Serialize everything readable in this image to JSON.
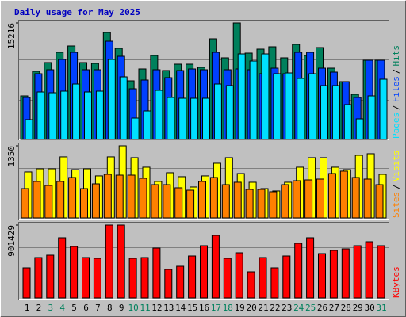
{
  "title": "Daily usage for May 2025",
  "chart_data": [
    {
      "type": "bar",
      "ylim": [
        0,
        15216
      ],
      "yticks": [
        15216
      ],
      "legend_separator": "/",
      "series": [
        {
          "name": "Hits",
          "color": "#00805c",
          "values": [
            5693,
            8902,
            10041,
            11386,
            12214,
            10041,
            9937,
            13974,
            11904,
            7660,
            9213,
            10972,
            9006,
            9834,
            9834,
            9420,
            13146,
            10662,
            15216,
            11283,
            11800,
            12111,
            10662,
            12421,
            10972,
            12007,
            9316,
            7556,
            5900,
            10351,
            10351
          ]
        },
        {
          "name": "Files",
          "color": "#0040ff",
          "values": [
            5486,
            8591,
            9108,
            10454,
            11385,
            9108,
            9108,
            12834,
            10868,
            6624,
            7763,
            9108,
            8073,
            9005,
            9212,
            9108,
            11385,
            9108,
            9212,
            9108,
            8591,
            9315,
            8591,
            11385,
            11385,
            9315,
            8798,
            7556,
            5486,
            10350,
            10350
          ]
        },
        {
          "name": "Pages",
          "color": "#00e0ff",
          "values": [
            2588,
            6210,
            6107,
            6314,
            7245,
            6210,
            6314,
            10454,
            8177,
            2795,
            3726,
            6417,
            5486,
            5382,
            5382,
            5382,
            7245,
            7038,
            11178,
            10247,
            11178,
            8591,
            8694,
            7970,
            8591,
            7038,
            7038,
            4554,
            2691,
            5693,
            7866
          ]
        }
      ]
    },
    {
      "type": "bar",
      "ylim": [
        0,
        1350
      ],
      "yticks": [
        1350
      ],
      "legend_separator": "/",
      "series": [
        {
          "name": "Visits",
          "color": "#ffff00",
          "values": [
            861,
            920,
            920,
            1143,
            905,
            920,
            787,
            1143,
            1350,
            1128,
            950,
            683,
            846,
            772,
            579,
            787,
            1024,
            1128,
            831,
            668,
            549,
            505,
            668,
            950,
            1128,
            1128,
            950,
            905,
            1172,
            1202,
            816
          ]
        },
        {
          "name": "Sites",
          "color": "#ff8000",
          "values": [
            549,
            683,
            608,
            683,
            757,
            549,
            638,
            816,
            801,
            801,
            742,
            623,
            623,
            564,
            519,
            683,
            757,
            623,
            668,
            534,
            534,
            490,
            623,
            697,
            712,
            727,
            831,
            876,
            757,
            727,
            623
          ]
        }
      ]
    },
    {
      "type": "bar",
      "ylim": [
        0,
        901429
      ],
      "yticks": [
        901429
      ],
      "categories": [
        "1",
        "2",
        "3",
        "4",
        "5",
        "6",
        "7",
        "8",
        "9",
        "10",
        "11",
        "12",
        "13",
        "14",
        "15",
        "16",
        "17",
        "18",
        "19",
        "20",
        "21",
        "22",
        "23",
        "24",
        "25",
        "26",
        "27",
        "28",
        "29",
        "30",
        "31"
      ],
      "category_colors": [
        "#000000",
        "#000000",
        "#00805c",
        "#00805c",
        "#000000",
        "#000000",
        "#000000",
        "#000000",
        "#000000",
        "#00805c",
        "#00805c",
        "#000000",
        "#000000",
        "#000000",
        "#000000",
        "#000000",
        "#00805c",
        "#00805c",
        "#000000",
        "#000000",
        "#000000",
        "#000000",
        "#000000",
        "#00805c",
        "#00805c",
        "#000000",
        "#000000",
        "#000000",
        "#000000",
        "#000000",
        "#00805c"
      ],
      "series": [
        {
          "name": "KBytes",
          "color": "#ff0000",
          "values": [
            372324,
            499698,
            529092,
            744648,
            636870,
            499698,
            489900,
            901429,
            901429,
            489900,
            499698,
            617274,
            352728,
            391920,
            519294,
            646668,
            774042,
            489900,
            558486,
            323334,
            499698,
            372324,
            519294,
            676062,
            744648,
            548688,
            587880,
            607476,
            646668,
            695658,
            646668
          ]
        }
      ]
    }
  ]
}
